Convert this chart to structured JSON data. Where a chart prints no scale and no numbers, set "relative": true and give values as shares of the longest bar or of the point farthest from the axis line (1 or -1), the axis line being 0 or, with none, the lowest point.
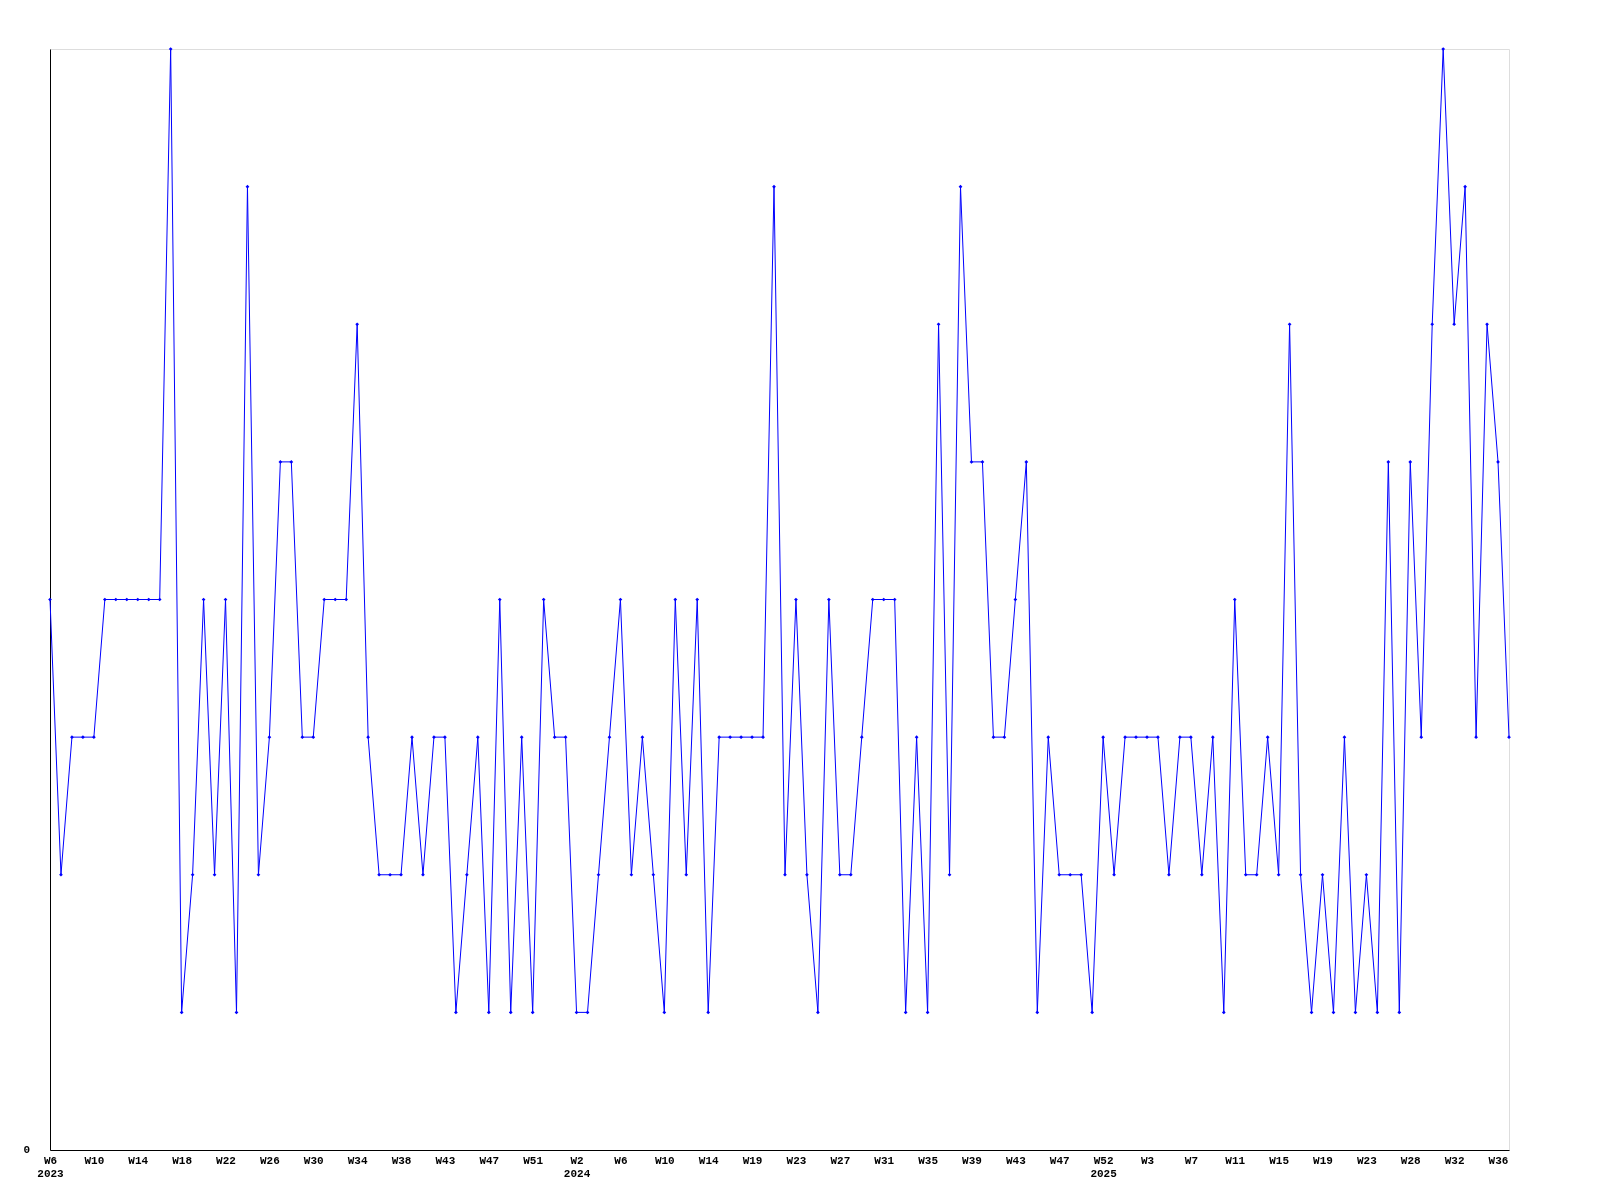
{
  "chart_data": {
    "type": "line",
    "relative": true,
    "marker": "diamond",
    "line_style": "solid",
    "grid": false,
    "categories": [
      "W6\n2023",
      null,
      null,
      null,
      "W10",
      null,
      null,
      null,
      "W14",
      null,
      null,
      null,
      "W18",
      null,
      null,
      null,
      "W22",
      null,
      null,
      null,
      "W26",
      null,
      null,
      null,
      "W30",
      null,
      null,
      null,
      "W34",
      null,
      null,
      null,
      "W38",
      null,
      null,
      null,
      "W43",
      null,
      null,
      null,
      "W47",
      null,
      null,
      null,
      "W51",
      null,
      null,
      null,
      "W2\n2024",
      null,
      null,
      null,
      "W6",
      null,
      null,
      null,
      "W10",
      null,
      null,
      null,
      "W14",
      null,
      null,
      null,
      "W19",
      null,
      null,
      null,
      "W23",
      null,
      null,
      null,
      "W27",
      null,
      null,
      null,
      "W31",
      null,
      null,
      null,
      "W35",
      null,
      null,
      null,
      "W39",
      null,
      null,
      null,
      "W43",
      null,
      null,
      null,
      "W47",
      null,
      null,
      null,
      "W52\n2025",
      null,
      null,
      null,
      "W3",
      null,
      null,
      null,
      "W7",
      null,
      null,
      null,
      "W11",
      null,
      null,
      null,
      "W15",
      null,
      null,
      null,
      "W19",
      null,
      null,
      null,
      "W23",
      null,
      null,
      null,
      "W28",
      null,
      null,
      null,
      "W32",
      null,
      null,
      null,
      "W36",
      null
    ],
    "series": [
      {
        "color": "#0000ff",
        "values": [
          0.5,
          0.25,
          0.375,
          0.375,
          0.375,
          0.5,
          0.5,
          0.5,
          0.5,
          0.5,
          0.5,
          1,
          0.125,
          0.25,
          0.5,
          0.25,
          0.5,
          0.125,
          0.875,
          0.25,
          0.375,
          0.625,
          0.625,
          0.375,
          0.375,
          0.5,
          0.5,
          0.5,
          0.75,
          0.375,
          0.25,
          0.25,
          0.25,
          0.375,
          0.25,
          0.375,
          0.375,
          0.125,
          0.25,
          0.375,
          0.125,
          0.5,
          0.125,
          0.375,
          0.125,
          0.5,
          0.375,
          0.375,
          0.125,
          0.125,
          0.25,
          0.375,
          0.5,
          0.25,
          0.375,
          0.25,
          0.125,
          0.5,
          0.25,
          0.5,
          0.125,
          0.375,
          0.375,
          0.375,
          0.375,
          0.375,
          0.875,
          0.25,
          0.5,
          0.25,
          0.125,
          0.5,
          0.25,
          0.25,
          0.375,
          0.5,
          0.5,
          0.5,
          0.125,
          0.375,
          0.125,
          0.75,
          0.25,
          0.875,
          0.625,
          0.625,
          0.375,
          0.375,
          0.5,
          0.625,
          0.125,
          0.375,
          0.25,
          0.25,
          0.25,
          0.125,
          0.375,
          0.25,
          0.375,
          0.375,
          0.375,
          0.375,
          0.25,
          0.375,
          0.375,
          0.25,
          0.375,
          0.125,
          0.5,
          0.25,
          0.25,
          0.375,
          0.25,
          0.75,
          0.25,
          0.125,
          0.25,
          0.125,
          0.375,
          0.125,
          0.25,
          0.125,
          0.625,
          0.125,
          0.625,
          0.375,
          0.75,
          1,
          0.75,
          0.875,
          0.375,
          0.75,
          0.625,
          0.375
        ]
      }
    ],
    "annotations": [
      "0"
    ]
  }
}
